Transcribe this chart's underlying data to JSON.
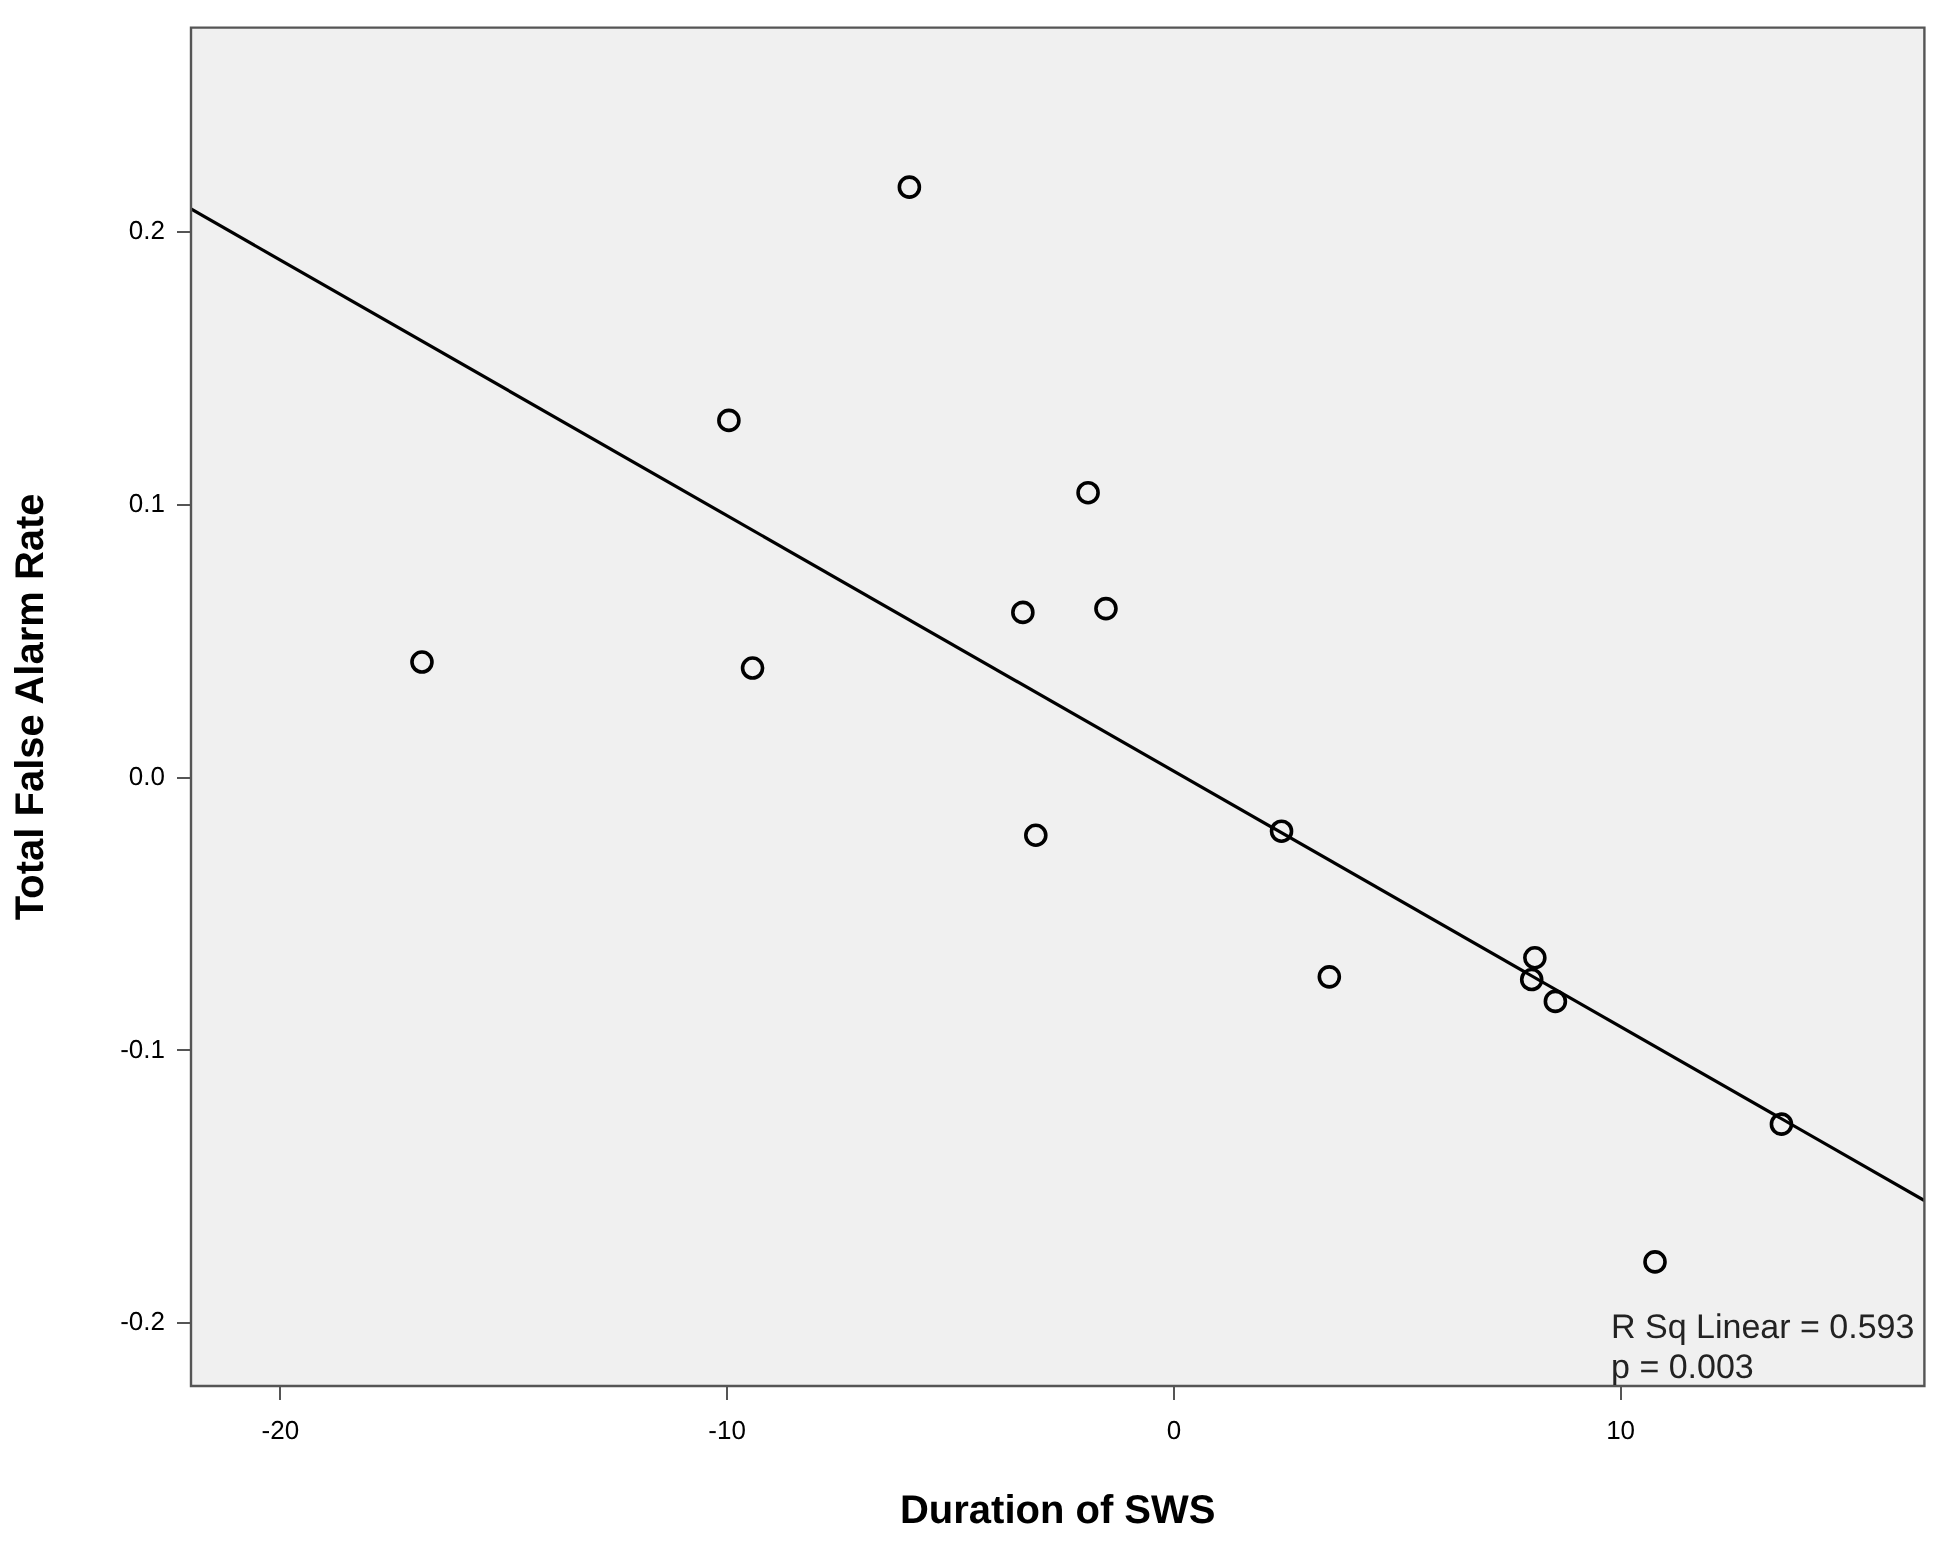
{
  "chart_data": {
    "type": "scatter",
    "xlabel": "Duration of SWS",
    "ylabel": "Total False Alarm Rate",
    "xlim": [
      -22,
      16.8
    ],
    "xticks": [
      -20,
      -10,
      0,
      10
    ],
    "ylim": [
      -0.223,
      0.275
    ],
    "yticks": [
      -0.2,
      -0.1,
      {
        "value": 0,
        "label": "0.0"
      },
      0.1,
      0.2
    ],
    "grid": false,
    "legend": false,
    "marker": "circle",
    "series": [
      {
        "color": "#000000",
        "x": [
          -5.92,
          -9.96,
          -1.92,
          -3.38,
          -1.52,
          -16.83,
          -9.43,
          3.48,
          -3.09,
          2.41,
          8.08,
          8.01,
          8.54,
          13.6,
          10.77
        ],
        "values": [
          0.2165,
          0.131,
          0.1045,
          0.0606,
          0.062,
          0.0424,
          0.0402,
          -0.073,
          -0.0211,
          -0.0196,
          -0.066,
          -0.074,
          -0.082,
          -0.127,
          -0.1775
        ]
      },
      {
        "type": "line",
        "color": "#000000",
        "marker": "none",
        "x": [
          -22,
          16.8
        ],
        "values": [
          0.2085,
          -0.155
        ]
      }
    ],
    "annotations": [
      "R Sq Linear = 0.593",
      "p = 0.003"
    ]
  }
}
